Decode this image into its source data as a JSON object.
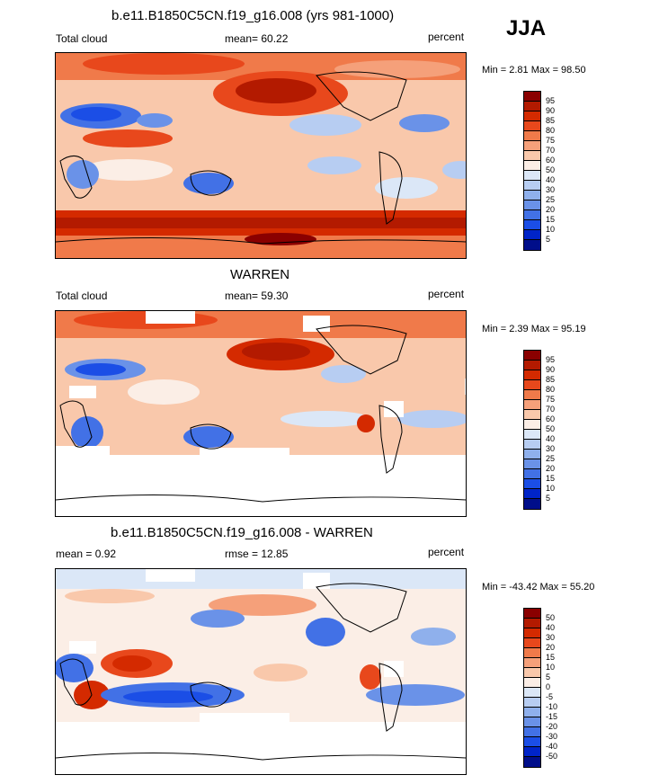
{
  "season": "JJA",
  "panels": [
    {
      "title": "b.e11.B1850C5CN.f19_g16.008 (yrs 981-1000)",
      "left_label": "Total cloud",
      "center_label": "mean=  60.22",
      "right_label": "percent",
      "minmax": "Min =   2.81 Max =  98.50",
      "colorbar_labels": [
        "95",
        "90",
        "85",
        "80",
        "75",
        "70",
        "60",
        "50",
        "40",
        "30",
        "25",
        "20",
        "15",
        "10",
        "5"
      ],
      "colorbar_colors": [
        "#8a0000",
        "#b31a00",
        "#d42a00",
        "#e8481c",
        "#f07a4a",
        "#f5a07a",
        "#f9c8ab",
        "#fbeee6",
        "#dbe7f7",
        "#b7cdf2",
        "#8fb0ec",
        "#6a92e8",
        "#4271e6",
        "#1b4ee6",
        "#0024c8",
        "#000e8a"
      ]
    },
    {
      "title": "WARREN",
      "left_label": "Total cloud",
      "center_label": "mean=  59.30",
      "right_label": "percent",
      "minmax": "Min =   2.39 Max =  95.19",
      "colorbar_labels": [
        "95",
        "90",
        "85",
        "80",
        "75",
        "70",
        "60",
        "50",
        "40",
        "30",
        "25",
        "20",
        "15",
        "10",
        "5"
      ],
      "colorbar_colors": [
        "#8a0000",
        "#b31a00",
        "#d42a00",
        "#e8481c",
        "#f07a4a",
        "#f5a07a",
        "#f9c8ab",
        "#fbeee6",
        "#dbe7f7",
        "#b7cdf2",
        "#8fb0ec",
        "#6a92e8",
        "#4271e6",
        "#1b4ee6",
        "#0024c8",
        "#000e8a"
      ]
    },
    {
      "title": "b.e11.B1850C5CN.f19_g16.008 - WARREN",
      "left_label": "mean =   0.92",
      "center_label": "rmse =  12.85",
      "right_label": "percent",
      "minmax": "Min = -43.42 Max =  55.20",
      "colorbar_labels": [
        "50",
        "40",
        "30",
        "20",
        "15",
        "10",
        "5",
        "0",
        "-5",
        "-10",
        "-15",
        "-20",
        "-30",
        "-40",
        "-50"
      ],
      "colorbar_colors": [
        "#8a0000",
        "#b31a00",
        "#d42a00",
        "#e8481c",
        "#f07a4a",
        "#f5a07a",
        "#f9c8ab",
        "#fbeee6",
        "#dbe7f7",
        "#b7cdf2",
        "#8fb0ec",
        "#6a92e8",
        "#4271e6",
        "#1b4ee6",
        "#0024c8",
        "#000e8a"
      ]
    }
  ]
}
